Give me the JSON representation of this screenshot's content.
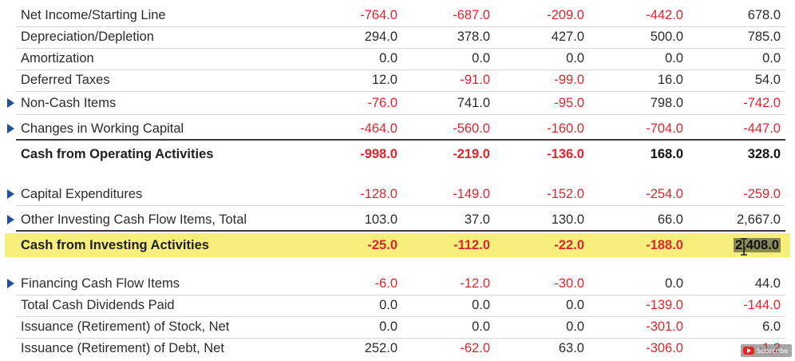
{
  "rows": [
    {
      "label": "Net Income/Starting Line",
      "expandable": false,
      "bold": false,
      "values": [
        "-764.0",
        "-687.0",
        "-209.0",
        "-442.0",
        "678.0"
      ]
    },
    {
      "label": "Depreciation/Depletion",
      "expandable": false,
      "bold": false,
      "values": [
        "294.0",
        "378.0",
        "427.0",
        "500.0",
        "785.0"
      ]
    },
    {
      "label": "Amortization",
      "expandable": false,
      "bold": false,
      "values": [
        "0.0",
        "0.0",
        "0.0",
        "0.0",
        "0.0"
      ]
    },
    {
      "label": "Deferred Taxes",
      "expandable": false,
      "bold": false,
      "values": [
        "12.0",
        "-91.0",
        "-99.0",
        "16.0",
        "54.0"
      ]
    },
    {
      "label": "Non-Cash Items",
      "expandable": true,
      "bold": false,
      "values": [
        "-76.0",
        "741.0",
        "-95.0",
        "798.0",
        "-742.0"
      ]
    },
    {
      "label": "Changes in Working Capital",
      "expandable": true,
      "bold": false,
      "values": [
        "-464.0",
        "-560.0",
        "-160.0",
        "-704.0",
        "-447.0"
      ]
    },
    {
      "label": "Cash from Operating Activities",
      "expandable": false,
      "bold": true,
      "values": [
        "-998.0",
        "-219.0",
        "-136.0",
        "168.0",
        "328.0"
      ]
    },
    {
      "label": "Capital Expenditures",
      "expandable": true,
      "bold": false,
      "values": [
        "-128.0",
        "-149.0",
        "-152.0",
        "-254.0",
        "-259.0"
      ]
    },
    {
      "label": "Other Investing Cash Flow Items, Total",
      "expandable": true,
      "bold": false,
      "values": [
        "103.0",
        "37.0",
        "130.0",
        "66.0",
        "2,667.0"
      ]
    },
    {
      "label": "Cash from Investing Activities",
      "expandable": false,
      "bold": true,
      "highlighted": true,
      "values": [
        "-25.0",
        "-112.0",
        "-22.0",
        "-188.0",
        "2,408.0"
      ]
    },
    {
      "label": "Financing Cash Flow Items",
      "expandable": true,
      "bold": false,
      "values": [
        "-6.0",
        "-12.0",
        "-30.0",
        "0.0",
        "44.0"
      ]
    },
    {
      "label": "Total Cash Dividends Paid",
      "expandable": false,
      "bold": false,
      "values": [
        "0.0",
        "0.0",
        "0.0",
        "-139.0",
        "-144.0"
      ]
    },
    {
      "label": "Issuance (Retirement) of Stock, Net",
      "expandable": false,
      "bold": false,
      "values": [
        "0.0",
        "0.0",
        "0.0",
        "-301.0",
        "6.0"
      ]
    },
    {
      "label": "Issuance (Retirement) of Debt, Net",
      "expandable": false,
      "bold": false,
      "values": [
        "252.0",
        "-62.0",
        "63.0",
        "-306.0",
        "-1,2"
      ]
    }
  ],
  "colors": {
    "negative": "#e2242d",
    "highlight": "#f6ef7c",
    "expand_arrow": "#1e4fa0"
  },
  "icons": {
    "expand": "triangle-right-icon",
    "cursor": "text-cursor-icon",
    "badge": "youtube-icon"
  },
  "overlay": {
    "subscribe_label": "Subscribe"
  }
}
